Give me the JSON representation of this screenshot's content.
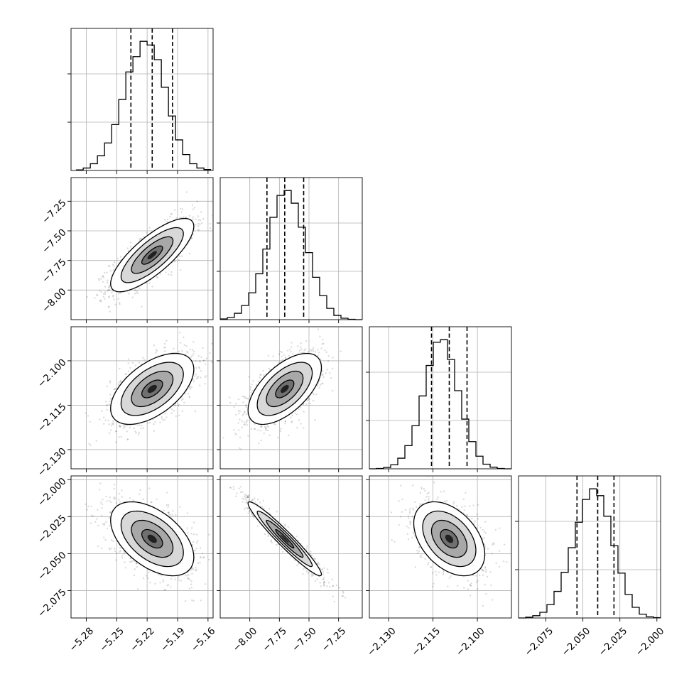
{
  "chart_data": {
    "type": "corner",
    "parameters": [
      {
        "index": 0,
        "range": [
          -5.295,
          -5.155
        ],
        "ticks": [
          -5.28,
          -5.25,
          -5.22,
          -5.19,
          -5.16
        ],
        "tick_labels": [
          "−5.28",
          "−5.25",
          "−5.22",
          "−5.19",
          "−5.16"
        ],
        "quantiles": [
          -5.236,
          -5.215,
          -5.195
        ],
        "hist_bins": [
          -5.29,
          -5.283,
          -5.276,
          -5.269,
          -5.262,
          -5.255,
          -5.248,
          -5.241,
          -5.234,
          -5.227,
          -5.22,
          -5.213,
          -5.206,
          -5.199,
          -5.192,
          -5.185,
          -5.178,
          -5.171,
          -5.164,
          -5.157
        ],
        "hist_counts": [
          2,
          8,
          22,
          48,
          90,
          150,
          232,
          322,
          372,
          422,
          410,
          362,
          272,
          178,
          100,
          52,
          22,
          8,
          3
        ]
      },
      {
        "index": 1,
        "range": [
          -8.25,
          -7.05
        ],
        "ticks": [
          -8.0,
          -7.75,
          -7.5,
          -7.25
        ],
        "tick_labels": [
          "−8.00",
          "−7.75",
          "−7.50",
          "−7.25"
        ],
        "quantiles": [
          -7.855,
          -7.705,
          -7.545
        ],
        "hist_bins": [
          -8.25,
          -8.19,
          -8.13,
          -8.07,
          -8.01,
          -7.95,
          -7.89,
          -7.83,
          -7.77,
          -7.71,
          -7.65,
          -7.59,
          -7.53,
          -7.47,
          -7.41,
          -7.35,
          -7.29,
          -7.23,
          -7.17,
          -7.11,
          -7.05
        ],
        "hist_counts": [
          2,
          6,
          18,
          40,
          76,
          130,
          200,
          290,
          352,
          366,
          330,
          262,
          190,
          120,
          68,
          32,
          12,
          4,
          1,
          0
        ]
      },
      {
        "index": 2,
        "range": [
          -2.1365,
          -2.0885
        ],
        "ticks": [
          -2.13,
          -2.115,
          -2.1
        ],
        "tick_labels": [
          "−2.130",
          "−2.115",
          "−2.100"
        ],
        "quantiles": [
          -2.1155,
          -2.1095,
          -2.1035
        ],
        "hist_bins": [
          -2.1365,
          -2.1341,
          -2.1317,
          -2.1293,
          -2.1269,
          -2.1245,
          -2.1221,
          -2.1197,
          -2.1173,
          -2.1149,
          -2.1125,
          -2.1101,
          -2.1077,
          -2.1053,
          -2.1029,
          -2.1005,
          -2.0981,
          -2.0957,
          -2.0933,
          -2.0909,
          -2.0885
        ],
        "hist_counts": [
          0,
          1,
          4,
          12,
          32,
          70,
          130,
          220,
          312,
          382,
          390,
          330,
          236,
          150,
          82,
          38,
          14,
          5,
          1,
          0
        ]
      },
      {
        "index": 3,
        "range": [
          -2.0935,
          -1.9975
        ],
        "ticks": [
          -2.075,
          -2.05,
          -2.025,
          -2.0
        ],
        "tick_labels": [
          "−2.075",
          "−2.050",
          "−2.025",
          "−2.000"
        ],
        "quantiles": [
          -2.054,
          -2.04,
          -2.029
        ],
        "hist_bins": [
          -2.0935,
          -2.0887,
          -2.0839,
          -2.0791,
          -2.0743,
          -2.0695,
          -2.0647,
          -2.0599,
          -2.0551,
          -2.0503,
          -2.0455,
          -2.0407,
          -2.0359,
          -2.0311,
          -2.0263,
          -2.0215,
          -2.0167,
          -2.0119,
          -2.0071,
          -2.0023,
          -1.9975
        ],
        "hist_counts": [
          0,
          2,
          6,
          15,
          35,
          70,
          120,
          185,
          252,
          312,
          340,
          322,
          268,
          190,
          118,
          62,
          28,
          10,
          3,
          1
        ]
      }
    ],
    "pairs": [
      {
        "x": 0,
        "y": 1,
        "correlation": 0.78
      },
      {
        "x": 0,
        "y": 2,
        "correlation": 0.55
      },
      {
        "x": 1,
        "y": 2,
        "correlation": 0.6
      },
      {
        "x": 0,
        "y": 3,
        "correlation": -0.5
      },
      {
        "x": 1,
        "y": 3,
        "correlation": -0.96
      },
      {
        "x": 2,
        "y": 3,
        "correlation": -0.42
      }
    ],
    "contour_levels_sigma": [
      0.5,
      1.0,
      1.5,
      2.0
    ],
    "grid": true
  }
}
